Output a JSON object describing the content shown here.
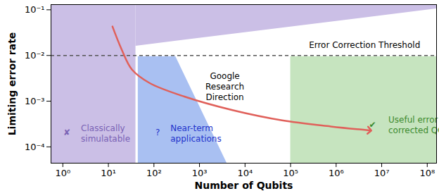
{
  "chart_data": {
    "type": "line",
    "log": true,
    "x_label": "Number of Qubits",
    "y_label": "Limiting error rate",
    "xlim": [
      0.55,
      160000000
    ],
    "ylim": [
      4.4e-05,
      0.13
    ],
    "xticks": [
      {
        "value": 1,
        "label": "10⁰"
      },
      {
        "value": 10,
        "label": "10¹"
      },
      {
        "value": 100,
        "label": "10²"
      },
      {
        "value": 1000,
        "label": "10³"
      },
      {
        "value": 10000,
        "label": "10⁴"
      },
      {
        "value": 100000,
        "label": "10⁵"
      },
      {
        "value": 1000000,
        "label": "10⁶"
      },
      {
        "value": 10000000,
        "label": "10⁷"
      },
      {
        "value": 100000000,
        "label": "10⁸"
      }
    ],
    "yticks": [
      {
        "value": 0.0001,
        "label": "10⁻⁴"
      },
      {
        "value": 0.001,
        "label": "10⁻³"
      },
      {
        "value": 0.01,
        "label": "10⁻²"
      },
      {
        "value": 0.1,
        "label": "10⁻¹"
      }
    ],
    "series": [
      {
        "name": "Google Research Direction",
        "color": "#e0605a",
        "marker": "arrow",
        "x": [
          12.3,
          19.4,
          33,
          80,
          466,
          5500,
          65000,
          760000,
          5400000
        ],
        "values": [
          0.043,
          0.0138,
          0.0049,
          0.0025,
          0.00126,
          0.00063,
          0.00038,
          0.00028,
          0.00023
        ]
      }
    ],
    "threshold": {
      "y": 0.01,
      "label": "Error Correction Threshold",
      "label_x": 70000000,
      "label_y": 0.017,
      "color": "#555555",
      "line_style": "dashed"
    },
    "regions": [
      {
        "color": "#cbbfe6",
        "x": [
          0.55,
          40
        ],
        "y1": [
          4.4e-05,
          4.4e-05
        ],
        "y2": [
          0.13,
          0.13
        ]
      },
      {
        "color": "#cbbfe6",
        "x": [
          40,
          160000000
        ],
        "y1": [
          0.016,
          0.105
        ],
        "y2": [
          0.13,
          0.13
        ]
      },
      {
        "color": "#a9c0f2",
        "x": [
          45,
          300,
          4000
        ],
        "y1": [
          4.4e-05,
          4.4e-05,
          4.4e-05
        ],
        "y2": [
          0.0095,
          0.0095,
          4.4e-05
        ]
      },
      {
        "color": "#c6e4bf",
        "x": [
          100000,
          160000000
        ],
        "y1": [
          4.4e-05,
          4.4e-05
        ],
        "y2": [
          0.0095,
          0.0095
        ]
      }
    ],
    "annotations": [
      {
        "text": "Google\nResearch\nDirection",
        "x": 3600,
        "y": 0.0021,
        "color": "#000000",
        "anchor": "middle"
      },
      {
        "text": "✘",
        "x": 1.23,
        "y": 0.00021,
        "color": "#7a62b5",
        "anchor": "middle"
      },
      {
        "text": "Classically\nsimulatable",
        "x": 2.5,
        "y": 0.0002,
        "color": "#7a62b5",
        "anchor": "start"
      },
      {
        "text": "?",
        "x": 121,
        "y": 0.00021,
        "color": "#2233cc",
        "anchor": "middle"
      },
      {
        "text": "Near-term\napplications",
        "x": 230,
        "y": 0.0002,
        "color": "#2233cc",
        "anchor": "start"
      },
      {
        "text": "✔",
        "x": 6300000,
        "y": 0.00031,
        "color": "#3c8a2e",
        "anchor": "middle"
      },
      {
        "text": "Useful error\ncorrected QC",
        "x": 14000000,
        "y": 0.00031,
        "color": "#3c8a2e",
        "anchor": "start"
      }
    ]
  }
}
